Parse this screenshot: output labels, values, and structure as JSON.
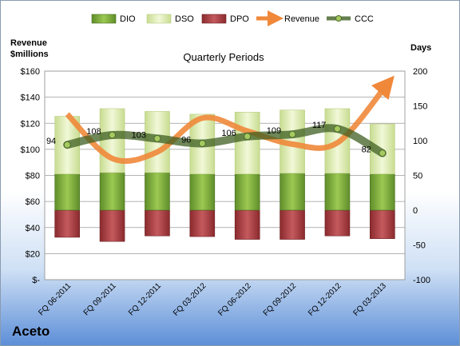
{
  "company": "Aceto",
  "chart_data": {
    "type": "bar",
    "title": "Quarterly Periods",
    "left_axis_label": [
      "Revenue",
      "$millions"
    ],
    "right_axis_label": "Days",
    "legend": [
      "DIO",
      "DSO",
      "DPO",
      "Revenue",
      "CCC"
    ],
    "legend_position": "top",
    "categories": [
      "FQ 06-2011",
      "FQ 09-2011",
      "FQ 12-2011",
      "FQ 03-2012",
      "FQ 06-2012",
      "FQ 09-2012",
      "FQ 12-2012",
      "FQ 03-2013"
    ],
    "left_ticks": [
      "$-",
      "$20",
      "$40",
      "$60",
      "$80",
      "$100",
      "$120",
      "$140",
      "$160"
    ],
    "left_ylim": [
      0,
      160
    ],
    "right_ticks": [
      "-100",
      "-50",
      "0",
      "50",
      "100",
      "150",
      "200"
    ],
    "right_ylim": [
      -100,
      200
    ],
    "grid": true,
    "series": [
      {
        "name": "DIO",
        "axis": "right",
        "values": [
          52,
          54,
          54,
          52,
          52,
          53,
          53,
          52
        ]
      },
      {
        "name": "DSO",
        "axis": "right",
        "values": [
          83,
          92,
          88,
          86,
          89,
          91,
          93,
          72
        ]
      },
      {
        "name": "DPO",
        "axis": "right",
        "values": [
          -39,
          -45,
          -37,
          -38,
          -42,
          -42,
          -37,
          -41
        ]
      },
      {
        "name": "Revenue",
        "axis": "left",
        "values": [
          127,
          93,
          98,
          124,
          114,
          104,
          105,
          150
        ]
      },
      {
        "name": "CCC",
        "axis": "right",
        "values": [
          94,
          108,
          103,
          96,
          106,
          109,
          117,
          82
        ]
      }
    ],
    "ccc_labels": [
      "94",
      "108",
      "103",
      "96",
      "106",
      "109",
      "117",
      "82"
    ],
    "colors": {
      "DIO": "#7aa83a",
      "DSO": "#d8e8a8",
      "DPO": "#a83a3e",
      "Revenue": "#f0883a",
      "CCC": "#4a6a2a"
    }
  }
}
